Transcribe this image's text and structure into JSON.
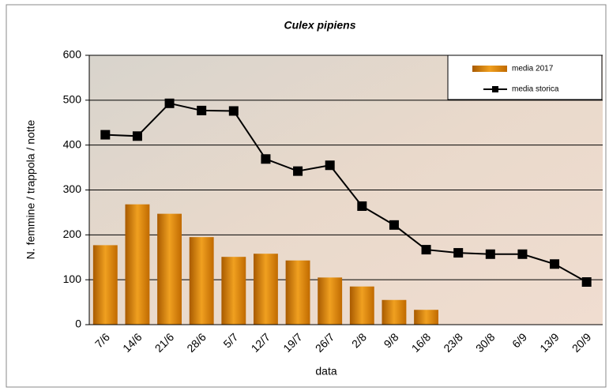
{
  "chart_data": {
    "type": "combo",
    "title": "Culex pipiens",
    "x_label": "data",
    "y_label": "N. femmine / trappola / notte",
    "categories": [
      "7/6",
      "14/6",
      "21/6",
      "28/6",
      "5/7",
      "12/7",
      "19/7",
      "26/7",
      "2/8",
      "9/8",
      "16/8",
      "23/8",
      "30/8",
      "6/9",
      "13/9",
      "20/9"
    ],
    "series": [
      {
        "name": "media 2017",
        "type": "bar",
        "color": "#e08a10",
        "values": [
          177,
          268,
          247,
          195,
          151,
          158,
          143,
          105,
          85,
          55,
          33,
          null,
          null,
          null,
          null,
          null
        ]
      },
      {
        "name": "media storica",
        "type": "line",
        "color": "#000000",
        "values": [
          423,
          420,
          493,
          477,
          476,
          369,
          342,
          355,
          264,
          222,
          167,
          160,
          157,
          157,
          135,
          95
        ]
      }
    ],
    "ylim": [
      0,
      600
    ],
    "yticks": [
      0,
      100,
      200,
      300,
      400,
      500,
      600
    ],
    "grid": true,
    "legend": "top-right"
  }
}
